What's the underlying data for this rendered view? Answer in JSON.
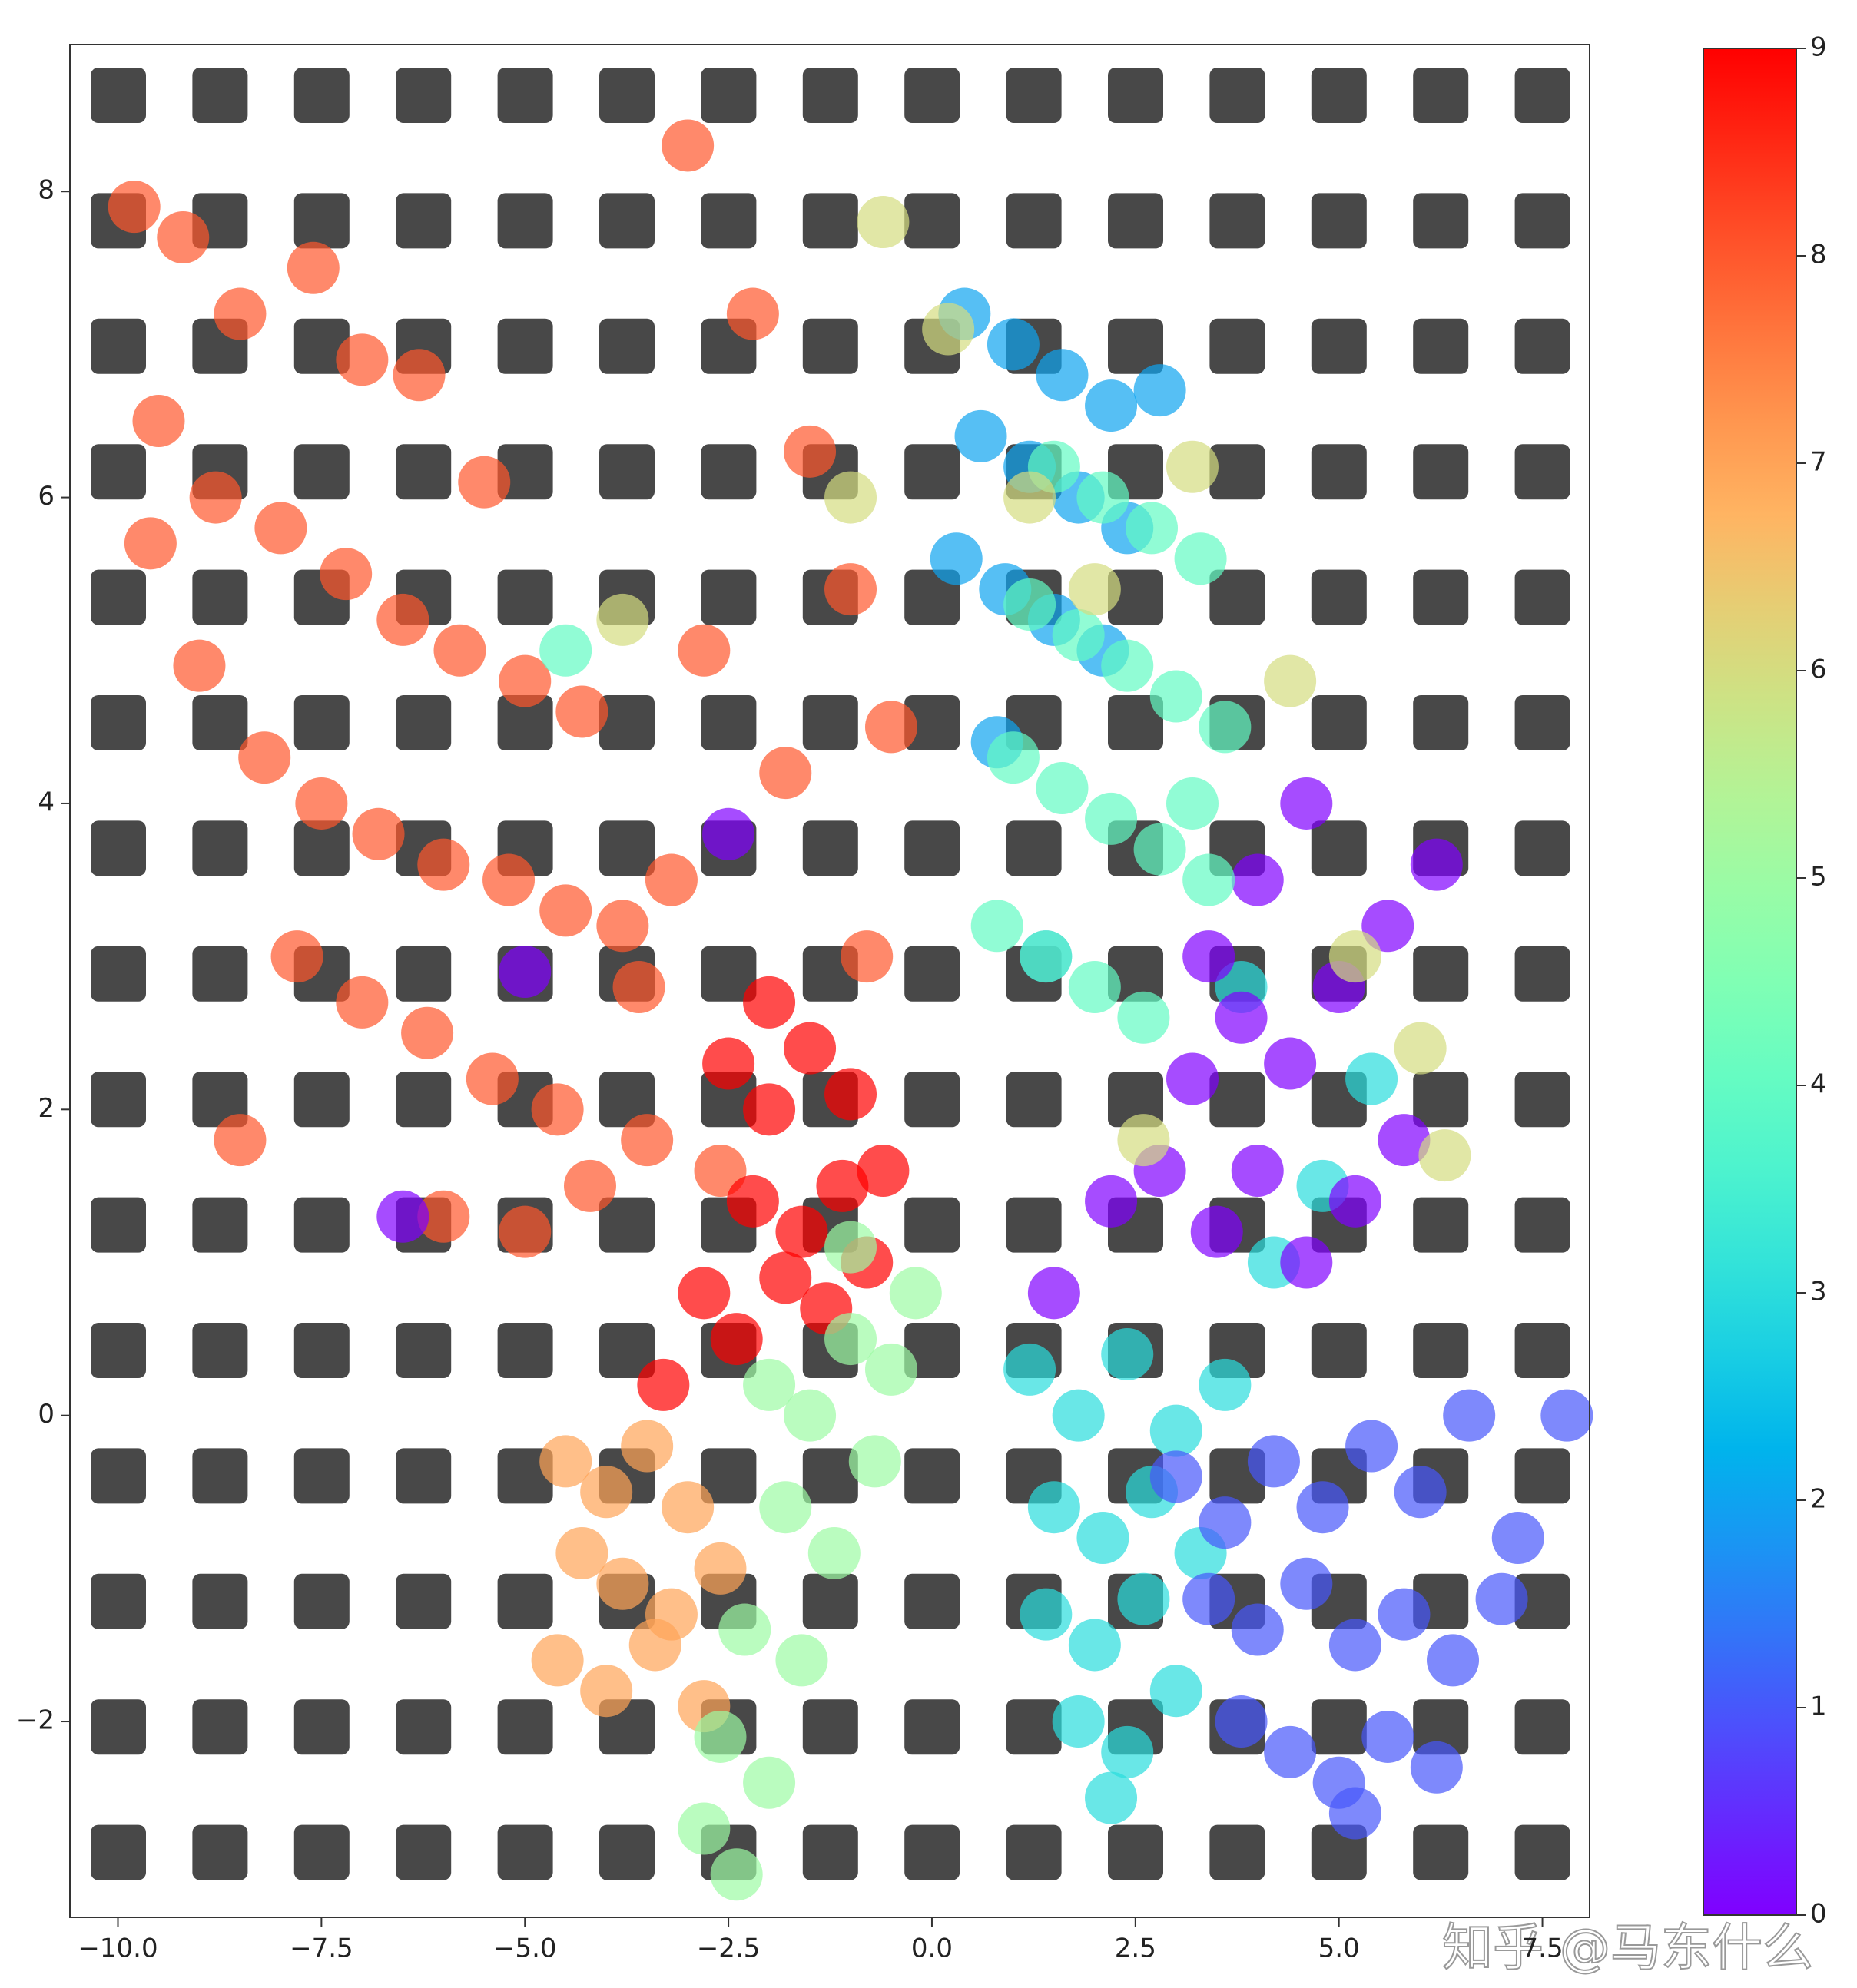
{
  "chart_data": {
    "type": "scatter",
    "xlim": [
      -10.59,
      8.08
    ],
    "ylim": [
      -3.28,
      8.96
    ],
    "xticks": [
      {
        "value": -10,
        "label": "−10.0"
      },
      {
        "value": -7.5,
        "label": "−7.5"
      },
      {
        "value": -5,
        "label": "−5.0"
      },
      {
        "value": -2.5,
        "label": "−2.5"
      },
      {
        "value": 0,
        "label": "0.0"
      },
      2.5,
      {
        "value": 5,
        "label": "5.0"
      },
      7.5
    ],
    "yticks": [
      {
        "value": -2,
        "label": "−2"
      },
      0,
      2,
      4,
      6,
      8
    ],
    "colormap": "rainbow",
    "clim": [
      0,
      9
    ],
    "cticks": [
      0,
      1,
      2,
      3,
      4,
      5,
      6,
      7,
      8,
      9
    ],
    "alpha": 0.7,
    "watermark": "知乎 @马东什么",
    "series": [
      {
        "value": 8,
        "x": [
          -9.8,
          -9.2,
          -8.5,
          -7.6,
          -7.0,
          -6.3,
          -5.5,
          -9.5,
          -8.8,
          -8.0,
          -7.2,
          -6.5,
          -5.8,
          -5.0,
          -4.3,
          -9.0,
          -8.2,
          -7.5,
          -6.8,
          -6.0,
          -5.2,
          -4.5,
          -3.8,
          -7.8,
          -7.0,
          -6.2,
          -5.4,
          -4.6,
          -3.5,
          -2.6,
          -3.0,
          -2.2,
          -1.5,
          -1.0,
          -0.5,
          -2.8,
          -1.8,
          -3.6,
          -4.2,
          -5.0,
          -6.0,
          -8.5,
          -9.6,
          -3.2,
          -0.8
        ],
        "y": [
          7.9,
          7.7,
          7.2,
          7.5,
          6.9,
          6.8,
          6.1,
          6.5,
          6.0,
          5.8,
          5.5,
          5.2,
          5.0,
          4.8,
          4.6,
          4.9,
          4.3,
          4.0,
          3.8,
          3.6,
          3.5,
          3.3,
          3.2,
          3.0,
          2.7,
          2.5,
          2.2,
          2.0,
          1.8,
          1.6,
          8.3,
          7.2,
          6.3,
          5.4,
          4.5,
          5.0,
          4.2,
          2.8,
          1.5,
          1.2,
          1.3,
          1.8,
          5.7,
          3.5,
          3.0
        ]
      },
      {
        "value": 9,
        "x": [
          -2.5,
          -2.0,
          -1.5,
          -1.0,
          -0.6,
          -2.2,
          -1.6,
          -1.1,
          -2.8,
          -2.4,
          -1.8,
          -1.3,
          -0.8,
          -3.3,
          -2.0
        ],
        "y": [
          2.3,
          2.0,
          2.4,
          2.1,
          1.6,
          1.4,
          1.2,
          1.5,
          0.8,
          0.5,
          0.9,
          0.7,
          1.0,
          0.2,
          2.7
        ]
      },
      {
        "value": 7,
        "x": [
          -4.5,
          -4.0,
          -3.5,
          -3.0,
          -4.3,
          -3.8,
          -3.2,
          -2.6,
          -4.6,
          -4.0,
          -3.4,
          -2.8
        ],
        "y": [
          -0.3,
          -0.5,
          -0.2,
          -0.6,
          -0.9,
          -1.1,
          -1.3,
          -1.0,
          -1.6,
          -1.8,
          -1.5,
          -1.9
        ]
      },
      {
        "value": 5,
        "x": [
          -2.0,
          -1.5,
          -1.0,
          -0.5,
          -0.2,
          -1.8,
          -1.2,
          -0.7,
          -2.3,
          -1.6,
          -2.6,
          -2.0,
          -2.8,
          -2.4,
          -1.0
        ],
        "y": [
          0.2,
          0.0,
          0.5,
          0.3,
          0.8,
          -0.6,
          -0.9,
          -0.3,
          -1.4,
          -1.6,
          -2.1,
          -2.4,
          -2.7,
          -3.0,
          1.1
        ]
      },
      {
        "value": 3,
        "x": [
          1.2,
          1.8,
          2.4,
          3.0,
          3.6,
          1.5,
          2.1,
          2.7,
          3.3,
          1.4,
          2.0,
          2.6,
          1.8,
          2.4,
          3.0,
          4.2,
          4.8,
          5.4,
          3.8,
          2.2
        ],
        "y": [
          0.3,
          0.0,
          0.4,
          -0.1,
          0.2,
          -0.6,
          -0.8,
          -0.5,
          -0.9,
          -1.3,
          -1.5,
          -1.2,
          -2.0,
          -2.2,
          -1.8,
          1.0,
          1.5,
          2.2,
          2.8,
          -2.5
        ]
      },
      {
        "value": 1,
        "x": [
          3.0,
          3.6,
          4.2,
          4.8,
          5.4,
          6.0,
          6.6,
          7.2,
          3.4,
          4.0,
          4.6,
          5.2,
          5.8,
          6.4,
          7.0,
          3.8,
          4.4,
          5.0,
          5.6,
          6.2,
          5.2,
          7.8
        ],
        "y": [
          -0.4,
          -0.7,
          -0.3,
          -0.6,
          -0.2,
          -0.5,
          0.0,
          -0.8,
          -1.2,
          -1.4,
          -1.1,
          -1.5,
          -1.3,
          -1.6,
          -1.2,
          -2.0,
          -2.2,
          -2.4,
          -2.1,
          -2.3,
          -2.6,
          0.0
        ]
      },
      {
        "value": 0,
        "x": [
          3.5,
          4.0,
          4.6,
          5.2,
          5.8,
          3.2,
          3.8,
          4.4,
          5.0,
          5.6,
          6.2,
          2.8,
          3.4,
          4.0,
          4.6,
          1.5,
          2.2,
          -6.5,
          -5.0,
          -2.5
        ],
        "y": [
          1.2,
          1.6,
          1.0,
          1.4,
          1.8,
          2.2,
          2.6,
          2.3,
          2.8,
          3.2,
          3.6,
          1.6,
          3.0,
          3.5,
          4.0,
          0.8,
          1.4,
          1.3,
          2.9,
          3.8
        ]
      },
      {
        "value": 2,
        "x": [
          0.4,
          1.0,
          1.6,
          2.2,
          0.6,
          1.2,
          1.8,
          2.4,
          0.3,
          0.9,
          1.5,
          2.1,
          0.8,
          1.4,
          2.8
        ],
        "y": [
          7.2,
          7.0,
          6.8,
          6.6,
          6.4,
          6.2,
          6.0,
          5.8,
          5.6,
          5.4,
          5.2,
          5.0,
          4.4,
          3.0,
          6.7
        ]
      },
      {
        "value": 4,
        "x": [
          1.5,
          2.1,
          2.7,
          3.3,
          1.2,
          1.8,
          2.4,
          3.0,
          3.6,
          1.0,
          1.6,
          2.2,
          2.8,
          3.4,
          0.8,
          1.4,
          2.0,
          2.6,
          -4.5,
          3.2
        ],
        "y": [
          6.2,
          6.0,
          5.8,
          5.6,
          5.3,
          5.1,
          4.9,
          4.7,
          4.5,
          4.3,
          4.1,
          3.9,
          3.7,
          3.5,
          3.2,
          3.0,
          2.8,
          2.6,
          5.0,
          4.0
        ]
      },
      {
        "value": 6,
        "x": [
          -0.6,
          0.2,
          1.2,
          2.0,
          3.2,
          4.4,
          5.2,
          6.0,
          -3.8,
          -1.0,
          2.6,
          6.3
        ],
        "y": [
          7.8,
          7.1,
          6.0,
          5.4,
          6.2,
          4.8,
          3.0,
          2.4,
          5.2,
          6.0,
          1.8,
          1.7
        ]
      }
    ]
  }
}
